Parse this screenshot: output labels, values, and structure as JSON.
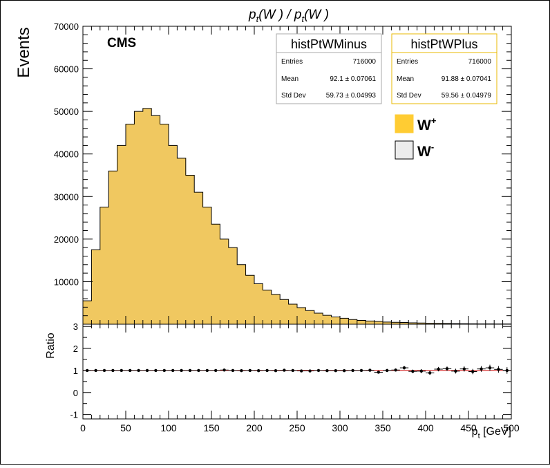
{
  "title": {
    "a": "p",
    "a_sub": "t",
    "b": "(W ) / p",
    "b_sub": "t",
    "c": "(W )"
  },
  "cms_label": "CMS",
  "y_title": "Events",
  "ratio_title": "Ratio",
  "x_title": {
    "main": "p",
    "sub": "t",
    "unit": " [GeV]"
  },
  "stats_minus": {
    "name": "histPtWMinus",
    "rows": [
      {
        "label": "Entries",
        "value": "716000"
      },
      {
        "label": "Mean",
        "value": "92.1 ± 0.07061"
      },
      {
        "label": "Std Dev",
        "value": "59.73 ± 0.04993"
      }
    ]
  },
  "stats_plus": {
    "name": "histPtWPlus",
    "rows": [
      {
        "label": "Entries",
        "value": "716000"
      },
      {
        "label": "Mean",
        "value": "91.88 ± 0.07041"
      },
      {
        "label": "Std Dev",
        "value": "59.56 ± 0.04979"
      }
    ]
  },
  "legend": [
    {
      "label": "W",
      "sup": "+",
      "color": "#ffcc33"
    },
    {
      "label": "W",
      "sup": "-",
      "color": "#ececec"
    }
  ],
  "colors": {
    "wplus_fill": "#ffcc33",
    "overlay_fill": "#f0c860",
    "ratio_line": "#cc0000",
    "stats_plus_border": "#e8b800",
    "stats_minus_border": "#aaaaaa"
  },
  "chart_data": {
    "type": "histogram",
    "bin_width": 10,
    "x_range": [
      0,
      500
    ],
    "main": {
      "ylim": [
        0,
        70000
      ],
      "y_ticks": [
        10000,
        20000,
        30000,
        40000,
        50000,
        60000,
        70000
      ],
      "series": [
        {
          "name": "W+",
          "bin_lows": [
            0,
            10,
            20,
            30,
            40,
            50,
            60,
            70,
            80,
            90,
            100,
            110,
            120,
            130,
            140,
            150,
            160,
            170,
            180,
            190,
            200,
            210,
            220,
            230,
            240,
            250,
            260,
            270,
            280,
            290,
            300,
            310,
            320,
            330,
            340,
            350,
            360,
            370,
            380,
            390,
            400,
            410,
            420,
            430,
            440,
            450,
            460,
            470,
            480,
            490
          ],
          "values": [
            5500,
            17500,
            27500,
            36000,
            42000,
            47000,
            50000,
            50700,
            49000,
            47000,
            42000,
            39000,
            35000,
            31000,
            27500,
            23500,
            20000,
            18000,
            14000,
            11500,
            9500,
            8000,
            7000,
            5800,
            4700,
            3900,
            3200,
            2600,
            2100,
            1700,
            1400,
            1100,
            900,
            750,
            650,
            500,
            450,
            400,
            330,
            280,
            230,
            200,
            180,
            150,
            130,
            110,
            90,
            80,
            70,
            60
          ]
        }
      ]
    },
    "ratio": {
      "ylim": [
        -1.2,
        3.1
      ],
      "y_ticks": [
        -1,
        0,
        1,
        2,
        3
      ],
      "reference": 1,
      "points": [
        {
          "x": 5,
          "y": 1.0,
          "err": 0.02
        },
        {
          "x": 15,
          "y": 1.0,
          "err": 0.02
        },
        {
          "x": 25,
          "y": 1.0,
          "err": 0.02
        },
        {
          "x": 35,
          "y": 1.0,
          "err": 0.02
        },
        {
          "x": 45,
          "y": 1.0,
          "err": 0.02
        },
        {
          "x": 55,
          "y": 1.0,
          "err": 0.02
        },
        {
          "x": 65,
          "y": 1.0,
          "err": 0.02
        },
        {
          "x": 75,
          "y": 1.0,
          "err": 0.02
        },
        {
          "x": 85,
          "y": 1.0,
          "err": 0.02
        },
        {
          "x": 95,
          "y": 1.0,
          "err": 0.02
        },
        {
          "x": 105,
          "y": 1.0,
          "err": 0.02
        },
        {
          "x": 115,
          "y": 1.0,
          "err": 0.02
        },
        {
          "x": 125,
          "y": 1.0,
          "err": 0.02
        },
        {
          "x": 135,
          "y": 1.0,
          "err": 0.02
        },
        {
          "x": 145,
          "y": 1.0,
          "err": 0.02
        },
        {
          "x": 155,
          "y": 1.0,
          "err": 0.02
        },
        {
          "x": 165,
          "y": 1.02,
          "err": 0.02
        },
        {
          "x": 175,
          "y": 1.0,
          "err": 0.02
        },
        {
          "x": 185,
          "y": 0.99,
          "err": 0.02
        },
        {
          "x": 195,
          "y": 1.0,
          "err": 0.02
        },
        {
          "x": 205,
          "y": 0.99,
          "err": 0.03
        },
        {
          "x": 215,
          "y": 1.0,
          "err": 0.03
        },
        {
          "x": 225,
          "y": 0.99,
          "err": 0.03
        },
        {
          "x": 235,
          "y": 1.01,
          "err": 0.03
        },
        {
          "x": 245,
          "y": 1.0,
          "err": 0.03
        },
        {
          "x": 255,
          "y": 0.98,
          "err": 0.03
        },
        {
          "x": 265,
          "y": 0.98,
          "err": 0.04
        },
        {
          "x": 275,
          "y": 1.0,
          "err": 0.04
        },
        {
          "x": 285,
          "y": 0.99,
          "err": 0.04
        },
        {
          "x": 295,
          "y": 0.99,
          "err": 0.04
        },
        {
          "x": 305,
          "y": 0.99,
          "err": 0.05
        },
        {
          "x": 315,
          "y": 1.0,
          "err": 0.05
        },
        {
          "x": 325,
          "y": 1.0,
          "err": 0.05
        },
        {
          "x": 335,
          "y": 1.01,
          "err": 0.06
        },
        {
          "x": 345,
          "y": 0.92,
          "err": 0.06
        },
        {
          "x": 355,
          "y": 1.0,
          "err": 0.07
        },
        {
          "x": 365,
          "y": 1.02,
          "err": 0.07
        },
        {
          "x": 375,
          "y": 1.12,
          "err": 0.08
        },
        {
          "x": 385,
          "y": 0.96,
          "err": 0.08
        },
        {
          "x": 395,
          "y": 0.97,
          "err": 0.09
        },
        {
          "x": 405,
          "y": 0.89,
          "err": 0.09
        },
        {
          "x": 415,
          "y": 1.06,
          "err": 0.1
        },
        {
          "x": 425,
          "y": 1.08,
          "err": 0.1
        },
        {
          "x": 435,
          "y": 0.97,
          "err": 0.11
        },
        {
          "x": 445,
          "y": 1.07,
          "err": 0.12
        },
        {
          "x": 455,
          "y": 0.95,
          "err": 0.12
        },
        {
          "x": 465,
          "y": 1.07,
          "err": 0.13
        },
        {
          "x": 475,
          "y": 1.12,
          "err": 0.14
        },
        {
          "x": 485,
          "y": 1.05,
          "err": 0.15
        },
        {
          "x": 495,
          "y": 1.0,
          "err": 0.15
        }
      ]
    },
    "x_ticks": [
      0,
      50,
      100,
      150,
      200,
      250,
      300,
      350,
      400,
      450,
      500
    ],
    "grid": false,
    "legend_position": "top-right"
  }
}
